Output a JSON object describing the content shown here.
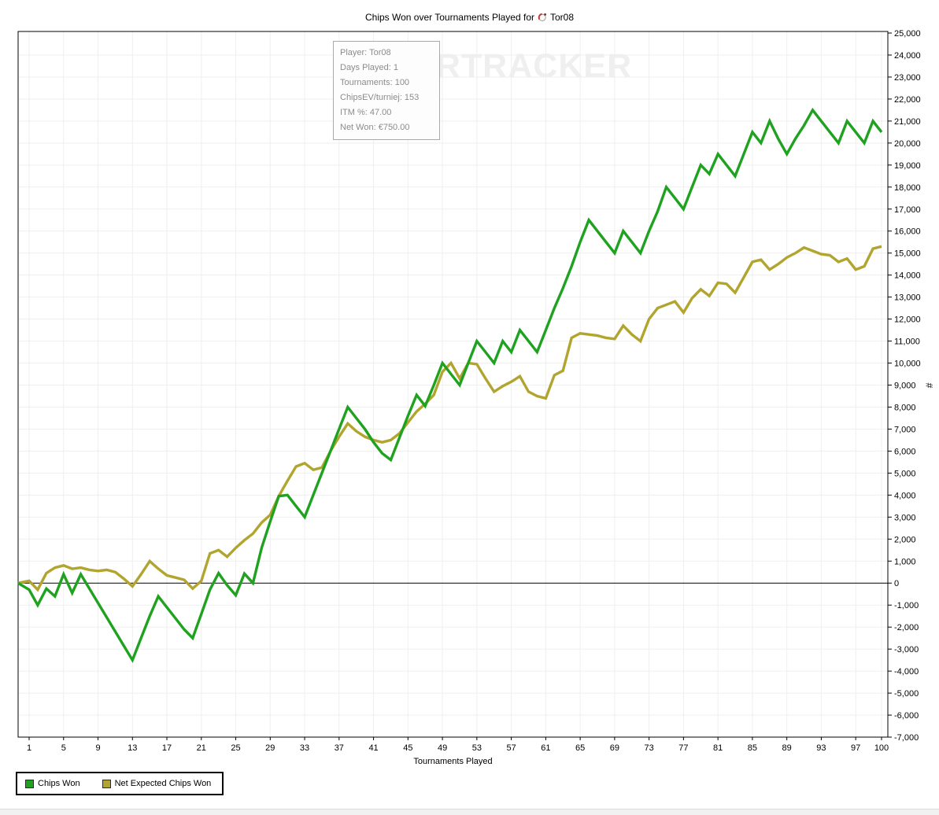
{
  "title": {
    "text": "Chips Won over Tournaments Played for",
    "player": "Tor08"
  },
  "watermark": "POKERTRACKER",
  "tooltip": {
    "lines": [
      "Player: Tor08",
      "Days Played: 1",
      "Tournaments: 100",
      "ChipsEV/turniej: 153",
      "ITM %: 47.00",
      "Net Won: €750.00"
    ]
  },
  "legend": {
    "items": [
      {
        "label": "Chips Won"
      },
      {
        "label": "Net Expected Chips Won"
      }
    ]
  },
  "chart_data": {
    "type": "line",
    "title": "Chips Won over Tournaments Played for Tor08",
    "xlabel": "Tournaments Played",
    "ylabel": "#",
    "xlim": [
      1,
      100
    ],
    "ylim": [
      -7000,
      25000
    ],
    "y_tick_interval": 1000,
    "x_ticks": [
      1,
      5,
      9,
      13,
      17,
      21,
      25,
      29,
      33,
      37,
      41,
      45,
      49,
      53,
      57,
      61,
      65,
      69,
      73,
      77,
      81,
      85,
      89,
      93,
      97,
      100
    ],
    "grid": true,
    "starts_at_zero": true,
    "legend_position": "bottom-left",
    "y_axis_side": "right",
    "colors": {
      "grid": "#efefef",
      "axis": "#000000",
      "zero_line": "#000000"
    },
    "series": [
      {
        "name": "Chips Won",
        "color": "#1fa21f",
        "values": [
          -300,
          -1000,
          -250,
          -600,
          400,
          -450,
          400,
          -250,
          -900,
          -1550,
          -2200,
          -2850,
          -3500,
          -2500,
          -1500,
          -600,
          -1100,
          -1600,
          -2100,
          -2500,
          -1400,
          -300,
          450,
          -100,
          -550,
          430,
          0,
          1600,
          2800,
          3950,
          4000,
          3500,
          3000,
          4000,
          5000,
          6000,
          7000,
          8000,
          7500,
          7000,
          6400,
          5900,
          5600,
          6600,
          7600,
          8550,
          8050,
          9000,
          10000,
          9500,
          9000,
          10000,
          11000,
          10500,
          10000,
          11000,
          10500,
          11500,
          11000,
          10500,
          11500,
          12500,
          13400,
          14400,
          15500,
          16500,
          16000,
          15500,
          15000,
          16000,
          15500,
          15000,
          16000,
          16900,
          18000,
          17500,
          17000,
          18000,
          19000,
          18600,
          19500,
          19000,
          18500,
          19500,
          20500,
          20000,
          21000,
          20200,
          19500,
          20200,
          20800,
          21500,
          21000,
          20500,
          20000,
          21000,
          20500,
          20000,
          21000,
          20500
        ]
      },
      {
        "name": "Net Expected Chips Won",
        "color": "#b1a52f",
        "values": [
          100,
          -300,
          450,
          700,
          800,
          650,
          700,
          600,
          550,
          600,
          500,
          200,
          -150,
          400,
          1000,
          650,
          350,
          250,
          150,
          -250,
          100,
          1350,
          1500,
          1200,
          1600,
          1950,
          2250,
          2750,
          3100,
          3950,
          4650,
          5300,
          5450,
          5150,
          5250,
          6000,
          6650,
          7250,
          6900,
          6650,
          6500,
          6400,
          6500,
          6800,
          7300,
          7800,
          8150,
          8550,
          9600,
          10000,
          9300,
          10000,
          9950,
          9300,
          8700,
          8950,
          9150,
          9400,
          8700,
          8500,
          8400,
          9450,
          9650,
          11150,
          11350,
          11300,
          11250,
          11150,
          11100,
          11700,
          11300,
          11000,
          12000,
          12500,
          12650,
          12800,
          12300,
          12950,
          13350,
          13050,
          13650,
          13600,
          13200,
          13900,
          14600,
          14700,
          14250,
          14500,
          14800,
          15000,
          15250,
          15100,
          14950,
          14900,
          14600,
          14750,
          14250,
          14400,
          15200,
          15300
        ]
      }
    ]
  }
}
